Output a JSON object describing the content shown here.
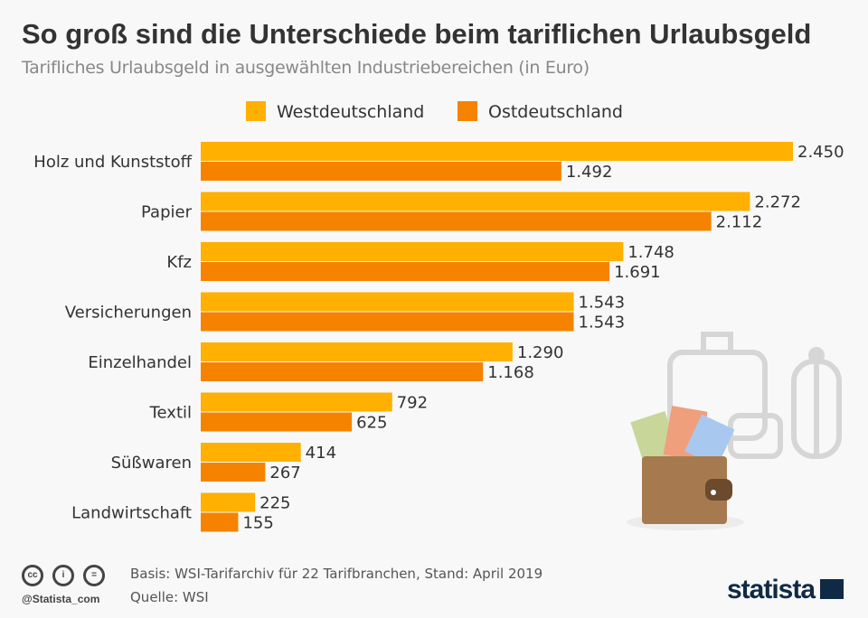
{
  "header": {
    "title": "So groß sind die Unterschiede beim tariflichen Urlaubsgeld",
    "subtitle": "Tarifliches Urlaubsgeld in ausgewählten Industriebereichen (in Euro)"
  },
  "chart_data": {
    "type": "bar",
    "orientation": "horizontal",
    "title": "So groß sind die Unterschiede beim tariflichen Urlaubsgeld",
    "categories": [
      "Holz und Kunststoff",
      "Papier",
      "Kfz",
      "Versicherungen",
      "Einzelhandel",
      "Textil",
      "Süßwaren",
      "Landwirtschaft"
    ],
    "series": [
      {
        "name": "Westdeutschland",
        "color": "#FFB000",
        "values": [
          2450,
          2272,
          1748,
          1543,
          1290,
          792,
          414,
          225
        ],
        "labels": [
          "2.450",
          "2.272",
          "1.748",
          "1.543",
          "1.290",
          "792",
          "414",
          "225"
        ]
      },
      {
        "name": "Ostdeutschland",
        "color": "#F58300",
        "values": [
          1492,
          2112,
          1691,
          1543,
          1168,
          625,
          267,
          155
        ],
        "labels": [
          "1.492",
          "2.112",
          "1.691",
          "1.543",
          "1.168",
          "625",
          "267",
          "155"
        ]
      }
    ],
    "xlim": [
      0,
      2450
    ],
    "grid": false,
    "legend": "top"
  },
  "footer": {
    "basis": "Basis: WSI-Tarifarchiv für 22 Tarifbranchen, Stand: April 2019",
    "source": "Quelle: WSI",
    "handle": "@Statista_com",
    "logo": "statista"
  }
}
